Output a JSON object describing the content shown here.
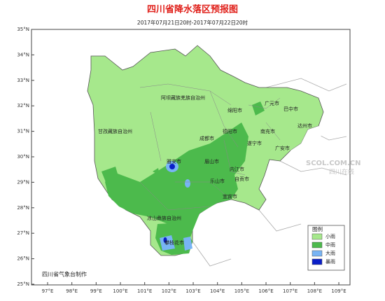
{
  "header": {
    "title": "四川省降水落区预报图",
    "subtitle": "2017年07月21日20时-2017年07月22日20时"
  },
  "axes": {
    "lat_labels": [
      "35°N",
      "34°N",
      "33°N",
      "32°N",
      "31°N",
      "30°N",
      "29°N",
      "28°N",
      "27°N",
      "26°N",
      "25°N"
    ],
    "lon_labels": [
      "97°E",
      "98°E",
      "99°E",
      "100°E",
      "101°E",
      "102°E",
      "103°E",
      "104°E",
      "105°E",
      "106°E",
      "107°E",
      "108°E",
      "109°E"
    ]
  },
  "places": [
    "阿坝藏族羌族自治州",
    "甘孜藏族自治州",
    "广元市",
    "巴中市",
    "绵阳市",
    "达州市",
    "德阳市",
    "南充市",
    "成都市",
    "遂宁市",
    "广安市",
    "雅安市",
    "眉山市",
    "内江市",
    "乐山市",
    "自贡市",
    "宜宾市",
    "凉山彝族自治州",
    "攀枝花市"
  ],
  "legend": {
    "title": "图例",
    "items": [
      "小雨",
      "中雨",
      "大雨",
      "暴雨"
    ]
  },
  "footer": "四川省气象台制作",
  "watermark": {
    "logo": "SCOL.COM.CN",
    "name": "四川在线"
  }
}
